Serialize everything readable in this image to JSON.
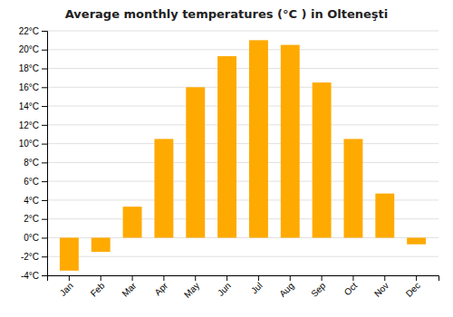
{
  "chart_data": {
    "type": "bar",
    "title": "Average monthly temperatures (°C ) in Olteneşti",
    "categories": [
      "Jan",
      "Feb",
      "Mar",
      "Apr",
      "May",
      "Jun",
      "Jul",
      "Aug",
      "Sep",
      "Oct",
      "Nov",
      "Dec"
    ],
    "values": [
      -3.5,
      -1.5,
      3.3,
      10.5,
      16.0,
      19.3,
      21.0,
      20.5,
      16.5,
      10.5,
      4.7,
      -0.7
    ],
    "color": "#FFAA00",
    "ylim": [
      -4,
      22
    ],
    "yticks": [
      {
        "value": -4,
        "label": "-4°C"
      },
      {
        "value": -2,
        "label": "-2°C"
      },
      {
        "value": 0,
        "label": "0°C"
      },
      {
        "value": 2,
        "label": "2°C"
      },
      {
        "value": 4,
        "label": "4°C"
      },
      {
        "value": 6,
        "label": "6°C"
      },
      {
        "value": 8,
        "label": "8°C"
      },
      {
        "value": 10,
        "label": "10°C"
      },
      {
        "value": 12,
        "label": "12°C"
      },
      {
        "value": 14,
        "label": "14°C"
      },
      {
        "value": 16,
        "label": "16°C"
      },
      {
        "value": 18,
        "label": "18°C"
      },
      {
        "value": 20,
        "label": "20°C"
      },
      {
        "value": 22,
        "label": "22°C"
      }
    ],
    "grid": true
  }
}
